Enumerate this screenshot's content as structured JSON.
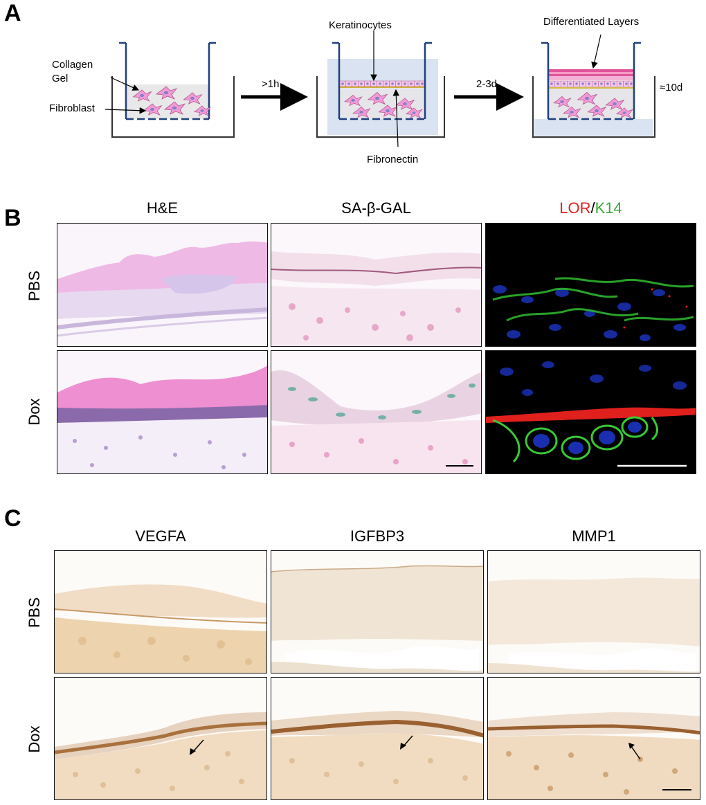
{
  "panel_a": {
    "letter": "A",
    "labels": {
      "collagen_gel": "Collagen\nGel",
      "fibroblast": "Fibroblast",
      "keratinocytes": "Keratinocytes",
      "fibronectin": "Fibronectin",
      "differentiated_layers": "Differentiated Layers"
    },
    "arrows": {
      "step1": ">1h",
      "step2": "2-3d",
      "step3": "≈10d"
    }
  },
  "panel_b": {
    "letter": "B",
    "columns": {
      "he": "H&E",
      "sa_beta_gal": "SA-β-GAL",
      "lor": "LOR",
      "slash": "/",
      "k14": "K14"
    },
    "rows": [
      "PBS",
      "Dox"
    ],
    "colors": {
      "lor": "#e0201c",
      "k14": "#39a935"
    }
  },
  "panel_c": {
    "letter": "C",
    "columns": [
      "VEGFA",
      "IGFBP3",
      "MMP1"
    ],
    "rows": [
      "PBS",
      "Dox"
    ]
  }
}
